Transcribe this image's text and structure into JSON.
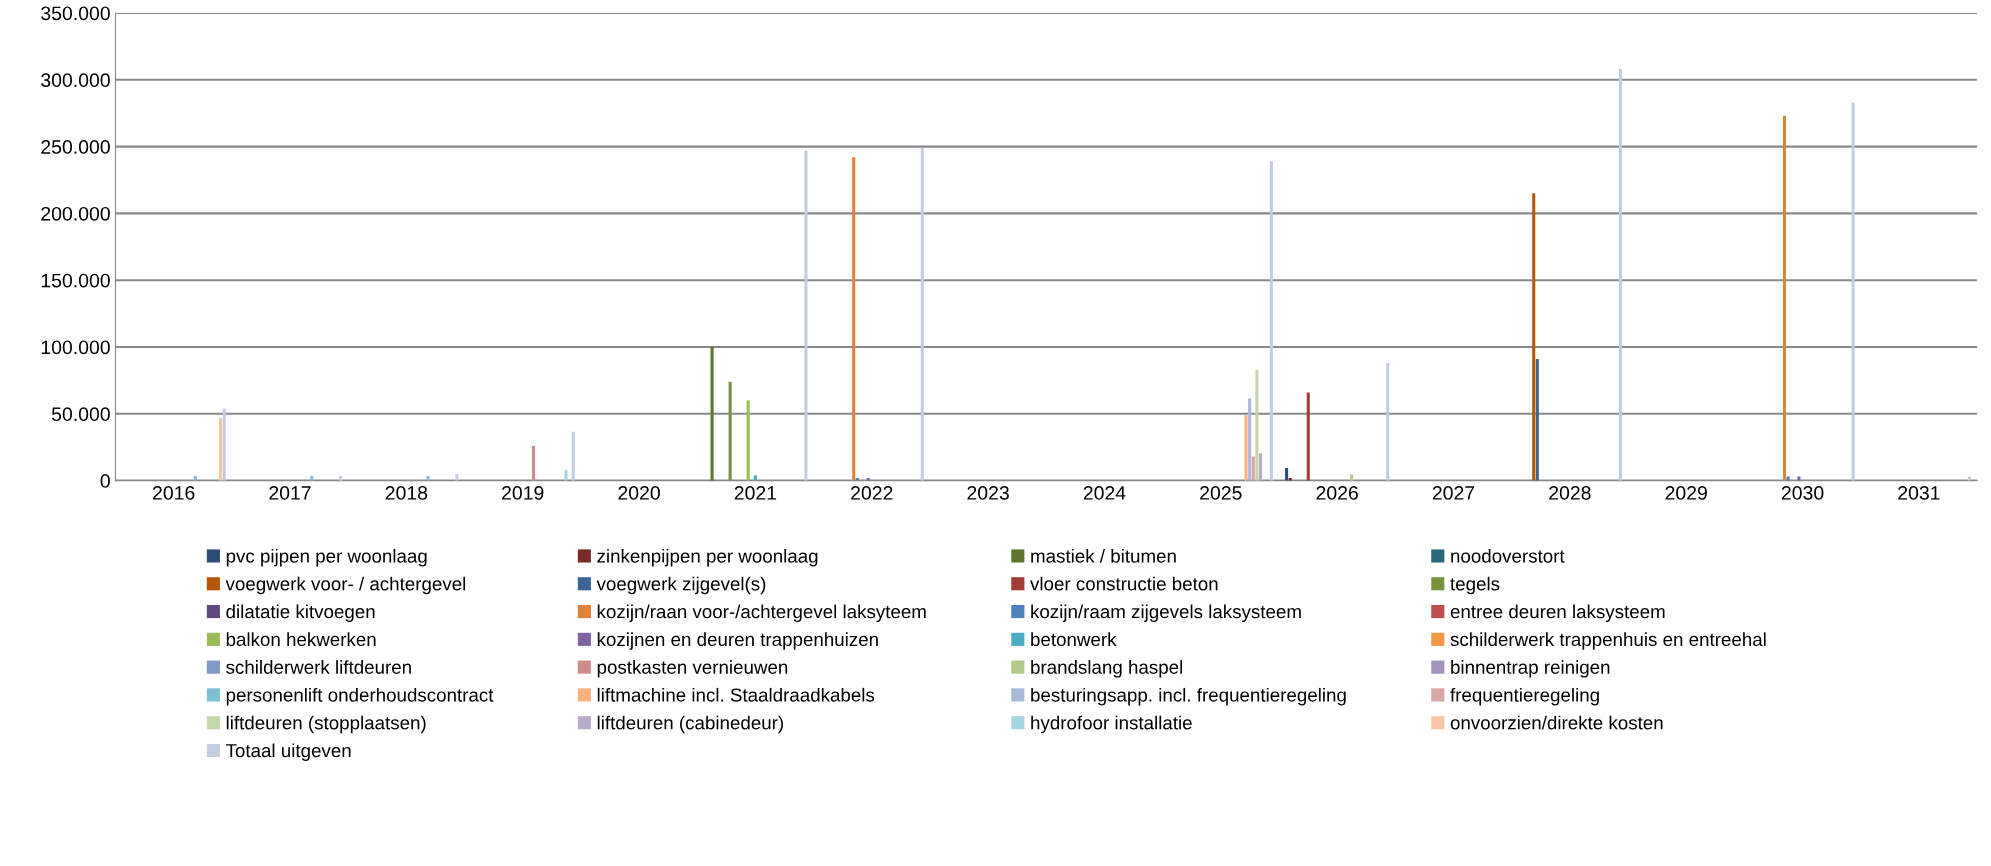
{
  "chart_data": {
    "type": "bar",
    "categories": [
      "2016",
      "2017",
      "2018",
      "2019",
      "2020",
      "2021",
      "2022",
      "2023",
      "2024",
      "2025",
      "2026",
      "2027",
      "2028",
      "2029",
      "2030",
      "2031"
    ],
    "ylim": [
      0,
      350000
    ],
    "yticks": [
      {
        "value": 0,
        "label": "0"
      },
      {
        "value": 50000,
        "label": "50.000"
      },
      {
        "value": 100000,
        "label": "100.000"
      },
      {
        "value": 150000,
        "label": "150.000"
      },
      {
        "value": 200000,
        "label": "200.000"
      },
      {
        "value": 250000,
        "label": "250.000"
      },
      {
        "value": 300000,
        "label": "300.000"
      },
      {
        "value": 350000,
        "label": "350.000"
      }
    ],
    "grid": "y",
    "legend": "bottom",
    "series": [
      {
        "name": "pvc pijpen per woonlaag",
        "color": "#2c4d75",
        "values": [
          0,
          0,
          0,
          0,
          0,
          0,
          0,
          0,
          0,
          0,
          9500,
          0,
          0,
          0,
          0,
          0
        ]
      },
      {
        "name": "zinkenpijpen per woonlaag",
        "color": "#772c2a",
        "values": [
          0,
          0,
          0,
          0,
          0,
          0,
          0,
          0,
          0,
          0,
          2000,
          0,
          0,
          0,
          0,
          0
        ]
      },
      {
        "name": "mastiek / bitumen",
        "color": "#5f7530",
        "values": [
          0,
          0,
          0,
          0,
          0,
          100000,
          0,
          0,
          0,
          0,
          0,
          0,
          0,
          0,
          0,
          0
        ]
      },
      {
        "name": "noodoverstort",
        "color": "#276a7c",
        "values": [
          0,
          0,
          0,
          0,
          0,
          0,
          0,
          0,
          0,
          0,
          null,
          0,
          0,
          0,
          0,
          0
        ]
      },
      {
        "name": "voegwerk voor- / achtergevel",
        "color": "#b65708",
        "values": [
          0,
          0,
          0,
          0,
          0,
          0,
          0,
          0,
          0,
          0,
          0,
          0,
          215000,
          0,
          0,
          0
        ]
      },
      {
        "name": "voegwerk zijgevel(s)",
        "color": "#3c6496",
        "values": [
          0,
          0,
          0,
          0,
          0,
          0,
          0,
          0,
          0,
          0,
          0,
          0,
          91000,
          0,
          0,
          0
        ]
      },
      {
        "name": "vloer constructie beton",
        "color": "#a33b37",
        "values": [
          0,
          0,
          0,
          0,
          0,
          0,
          0,
          0,
          0,
          0,
          66000,
          0,
          0,
          0,
          0,
          0
        ]
      },
      {
        "name": "tegels",
        "color": "#77933c",
        "values": [
          0,
          0,
          0,
          0,
          0,
          74000,
          0,
          0,
          0,
          0,
          0,
          0,
          0,
          0,
          0,
          0
        ]
      },
      {
        "name": "dilatatie kitvoegen",
        "color": "#5f4a7e",
        "values": [
          0,
          0,
          0,
          0,
          0,
          0,
          0,
          0,
          0,
          0,
          0,
          0,
          0,
          0,
          0,
          0
        ]
      },
      {
        "name": "kozijn/raan voor-/achtergevel laksyteem",
        "color": "#e0823a",
        "values": [
          0,
          0,
          0,
          0,
          0,
          0,
          242000,
          0,
          0,
          0,
          0,
          0,
          0,
          0,
          273000,
          0
        ]
      },
      {
        "name": "kozijn/raam zijgevels laksysteem",
        "color": "#4f81bd",
        "values": [
          0,
          0,
          0,
          0,
          0,
          0,
          2000,
          0,
          0,
          0,
          0,
          0,
          0,
          0,
          3000,
          0
        ]
      },
      {
        "name": "entree deuren laksysteem",
        "color": "#c0504d",
        "values": [
          0,
          0,
          0,
          0,
          0,
          0,
          0,
          0,
          0,
          0,
          0,
          0,
          0,
          0,
          0,
          0
        ]
      },
      {
        "name": "balkon hekwerken",
        "color": "#9bbb59",
        "values": [
          0,
          0,
          0,
          0,
          0,
          60000,
          0,
          0,
          0,
          0,
          0,
          0,
          0,
          0,
          0,
          0
        ]
      },
      {
        "name": "kozijnen en deuren trappenhuizen",
        "color": "#8064a2",
        "values": [
          0,
          0,
          0,
          0,
          0,
          0,
          2000,
          0,
          0,
          0,
          0,
          0,
          0,
          0,
          3000,
          0
        ]
      },
      {
        "name": "betonwerk",
        "color": "#4bacc6",
        "values": [
          0,
          0,
          0,
          0,
          0,
          4000,
          0,
          0,
          0,
          0,
          0,
          0,
          0,
          0,
          0,
          0
        ]
      },
      {
        "name": "schilderwerk trappenhuis en entreehal",
        "color": "#f79646",
        "values": [
          0,
          0,
          0,
          0,
          0,
          0,
          0,
          0,
          0,
          0,
          0,
          0,
          0,
          0,
          0,
          0
        ]
      },
      {
        "name": "schilderwerk liftdeuren",
        "color": "#7f99c8",
        "values": [
          0,
          0,
          0,
          0,
          0,
          0,
          0,
          0,
          0,
          0,
          0,
          0,
          0,
          0,
          0,
          0
        ]
      },
      {
        "name": "postkasten vernieuwen",
        "color": "#cd8c8a",
        "values": [
          0,
          0,
          0,
          26000,
          0,
          0,
          0,
          0,
          0,
          0,
          0,
          0,
          0,
          0,
          0,
          0
        ]
      },
      {
        "name": "brandslang haspel",
        "color": "#b3ca8a",
        "values": [
          0,
          0,
          0,
          0,
          0,
          0,
          0,
          0,
          0,
          0,
          4500,
          0,
          0,
          0,
          0,
          0
        ]
      },
      {
        "name": "binnentrap reinigen",
        "color": "#a393bd",
        "values": [
          0,
          0,
          0,
          0,
          0,
          0,
          0,
          0,
          0,
          0,
          0,
          0,
          0,
          0,
          0,
          0
        ]
      },
      {
        "name": "personenlift onderhoudscontract",
        "color": "#7ebfd1",
        "values": [
          3500,
          3500,
          3500,
          0,
          0,
          0,
          0,
          0,
          0,
          0,
          0,
          0,
          0,
          0,
          0,
          0
        ]
      },
      {
        "name": "liftmachine incl. Staaldraadkabels",
        "color": "#f9b27c",
        "values": [
          0,
          0,
          0,
          0,
          0,
          0,
          0,
          0,
          0,
          49000,
          0,
          0,
          0,
          0,
          0,
          0
        ]
      },
      {
        "name": "besturingsapp. incl. frequentieregeling",
        "color": "#a7b9d7",
        "values": [
          0,
          0,
          0,
          0,
          0,
          0,
          0,
          0,
          0,
          61500,
          0,
          0,
          0,
          0,
          0,
          0
        ]
      },
      {
        "name": "frequentieregeling",
        "color": "#d8a7a6",
        "values": [
          0,
          0,
          0,
          0,
          0,
          0,
          0,
          0,
          0,
          18000,
          0,
          0,
          0,
          0,
          0,
          0
        ]
      },
      {
        "name": "liftdeuren (stopplaatsen)",
        "color": "#c4d7a8",
        "values": [
          0,
          0,
          0,
          0,
          0,
          0,
          0,
          0,
          0,
          83000,
          0,
          0,
          0,
          0,
          0,
          0
        ]
      },
      {
        "name": "liftdeuren (cabinedeur)",
        "color": "#b6acc9",
        "values": [
          0,
          0,
          0,
          0,
          0,
          0,
          0,
          0,
          0,
          20500,
          0,
          0,
          0,
          0,
          0,
          0
        ]
      },
      {
        "name": "hydrofoor installatie",
        "color": "#a6d4e0",
        "values": [
          0,
          0,
          0,
          8000,
          0,
          0,
          0,
          0,
          0,
          0,
          0,
          0,
          0,
          0,
          0,
          0
        ]
      },
      {
        "name": "onvoorzien/direkte kosten",
        "color": "#f9c6a4",
        "values": [
          47000,
          0,
          0,
          0,
          0,
          0,
          0,
          0,
          0,
          0,
          0,
          0,
          0,
          0,
          0,
          0
        ]
      },
      {
        "name": "Totaal uitgeven",
        "color": "#c3cde1",
        "values": [
          54000,
          3500,
          5000,
          36500,
          0,
          247000,
          249000,
          0,
          0,
          239000,
          88000,
          0,
          308000,
          0,
          283000,
          3000
        ]
      }
    ]
  }
}
